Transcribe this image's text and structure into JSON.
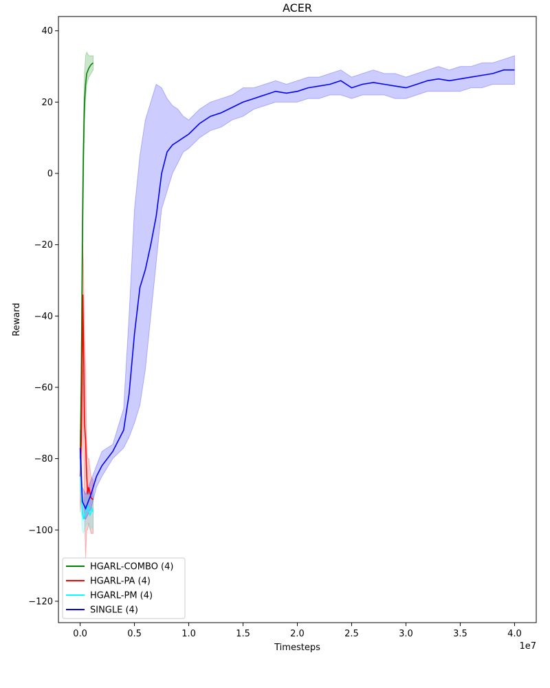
{
  "chart_data": {
    "type": "line",
    "title": "ACER",
    "xlabel": "Timesteps",
    "ylabel": "Reward",
    "x_offset_text": "1e7",
    "xlim": [
      -0.2,
      4.2
    ],
    "ylim": [
      -126,
      44
    ],
    "x_ticks": [
      0.0,
      0.5,
      1.0,
      1.5,
      2.0,
      2.5,
      3.0,
      3.5,
      4.0
    ],
    "x_tick_labels": [
      "0.0",
      "0.5",
      "1.0",
      "1.5",
      "2.0",
      "2.5",
      "3.0",
      "3.5",
      "4.0"
    ],
    "y_ticks": [
      -120,
      -100,
      -80,
      -60,
      -40,
      -20,
      0,
      20,
      40
    ],
    "y_tick_labels": [
      "−120",
      "−100",
      "−80",
      "−60",
      "−40",
      "−20",
      "0",
      "20",
      "40"
    ],
    "grid": false,
    "legend_position": "lower-left",
    "series": [
      {
        "name": "HGARL-COMBO (4)",
        "color": "#008000",
        "x": [
          0.0,
          0.01,
          0.02,
          0.03,
          0.04,
          0.05,
          0.06,
          0.08,
          0.1,
          0.12
        ],
        "y": [
          -80,
          -60,
          -20,
          5,
          20,
          25,
          28,
          29.5,
          30.5,
          31
        ],
        "lower": [
          -85,
          -70,
          -35,
          -5,
          15,
          21,
          25,
          27,
          28,
          29
        ],
        "upper": [
          -75,
          -50,
          -5,
          15,
          28,
          33,
          34,
          33,
          33,
          33
        ]
      },
      {
        "name": "HGARL-PA (4)",
        "color": "#ff0000",
        "x": [
          0.0,
          0.01,
          0.02,
          0.025,
          0.03,
          0.04,
          0.05,
          0.06,
          0.07,
          0.08,
          0.1,
          0.12
        ],
        "y": [
          -85,
          -75,
          -50,
          -34,
          -45,
          -70,
          -75,
          -85,
          -90,
          -88,
          -91,
          -91.5
        ],
        "lower": [
          -95,
          -90,
          -75,
          -55,
          -70,
          -95,
          -108,
          -100,
          -100,
          -98,
          -101,
          -101
        ],
        "upper": [
          -75,
          -60,
          -35,
          -20,
          -25,
          -45,
          -55,
          -75,
          -80,
          -80,
          -85,
          -86
        ]
      },
      {
        "name": "HGARL-PM (4)",
        "color": "#00ffff",
        "x": [
          0.0,
          0.01,
          0.02,
          0.03,
          0.05,
          0.07,
          0.09,
          0.11,
          0.12
        ],
        "y": [
          -77,
          -90,
          -95,
          -97,
          -95,
          -93,
          -96,
          -94,
          -95
        ],
        "lower": [
          -82,
          -95,
          -100,
          -101,
          -99,
          -98,
          -100,
          -99,
          -100
        ],
        "upper": [
          -72,
          -85,
          -90,
          -92,
          -91,
          -88,
          -91,
          -89,
          -90
        ]
      },
      {
        "name": "SINGLE (4)",
        "color": "#0000ff",
        "x": [
          0.0,
          0.02,
          0.05,
          0.1,
          0.15,
          0.2,
          0.3,
          0.4,
          0.45,
          0.5,
          0.55,
          0.6,
          0.65,
          0.7,
          0.75,
          0.8,
          0.85,
          0.9,
          0.95,
          1.0,
          1.1,
          1.2,
          1.3,
          1.4,
          1.5,
          1.6,
          1.7,
          1.8,
          1.9,
          2.0,
          2.1,
          2.2,
          2.3,
          2.4,
          2.5,
          2.6,
          2.7,
          2.8,
          2.9,
          3.0,
          3.1,
          3.2,
          3.3,
          3.4,
          3.5,
          3.6,
          3.7,
          3.8,
          3.9,
          4.0
        ],
        "y": [
          -77,
          -92,
          -94,
          -90,
          -85,
          -82,
          -78,
          -72,
          -62,
          -45,
          -32,
          -27,
          -20,
          -12,
          0,
          6,
          8,
          9,
          10,
          11,
          14,
          16,
          17,
          18.5,
          20,
          21,
          22,
          23,
          22.5,
          23,
          24,
          24.5,
          25,
          26,
          24,
          25,
          25.5,
          25,
          24.5,
          24,
          25,
          26,
          26.5,
          26,
          26.5,
          27,
          27.5,
          28,
          29,
          29
        ],
        "lower": [
          -82,
          -96,
          -97,
          -94,
          -88,
          -85,
          -80,
          -77,
          -74,
          -70,
          -65,
          -55,
          -40,
          -25,
          -10,
          -5,
          0,
          3,
          6,
          7,
          10,
          12,
          13,
          15,
          16,
          18,
          19,
          20,
          20,
          20,
          21,
          21,
          22,
          22,
          21,
          22,
          22,
          22,
          21,
          21,
          22,
          23,
          23,
          23,
          23,
          24,
          24,
          25,
          25,
          25
        ],
        "upper": [
          -72,
          -88,
          -90,
          -86,
          -82,
          -78,
          -76,
          -66,
          -40,
          -10,
          5,
          15,
          20,
          25,
          24,
          21,
          19,
          18,
          16,
          15,
          18,
          20,
          21,
          22,
          24,
          24,
          25,
          26,
          25,
          26,
          27,
          27,
          28,
          29,
          27,
          28,
          29,
          28,
          28,
          27,
          28,
          29,
          30,
          29,
          30,
          30,
          31,
          31,
          32,
          33
        ]
      }
    ]
  }
}
